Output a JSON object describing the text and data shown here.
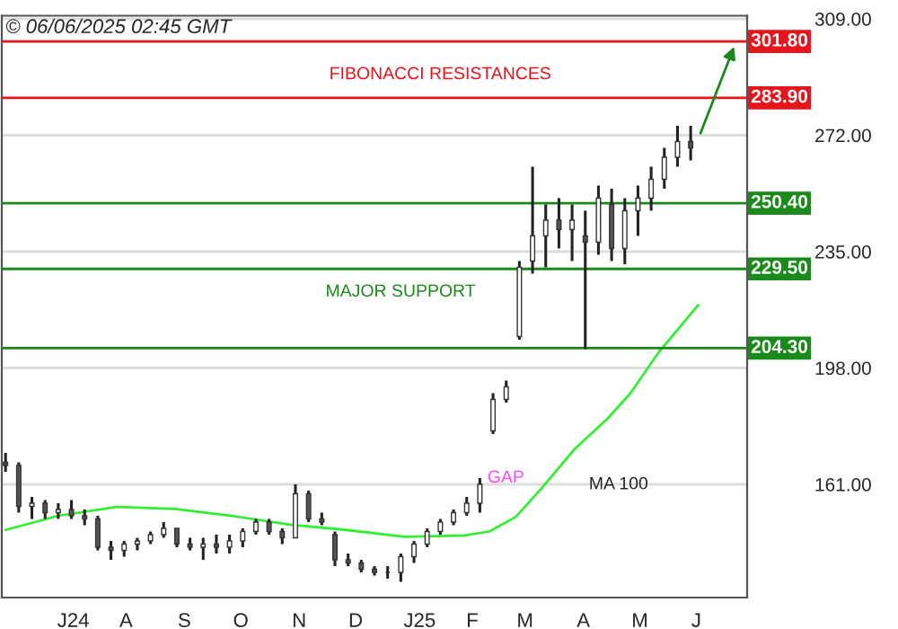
{
  "chart_data": {
    "type": "candlestick",
    "x": [
      "2024-06-03",
      "2024-06-10",
      "2024-06-17",
      "2024-06-24",
      "2024-07-01",
      "2024-07-08",
      "2024-07-15",
      "2024-07-22",
      "2024-07-29",
      "2024-08-05",
      "2024-08-12",
      "2024-08-19",
      "2024-08-26",
      "2024-09-02",
      "2024-09-09",
      "2024-09-16",
      "2024-09-23",
      "2024-09-30",
      "2024-10-07",
      "2024-10-14",
      "2024-10-21",
      "2024-10-28",
      "2024-11-04",
      "2024-11-11",
      "2024-11-18",
      "2024-11-25",
      "2024-12-02",
      "2024-12-09",
      "2024-12-16",
      "2024-12-23",
      "2024-12-30",
      "2025-01-06",
      "2025-01-13",
      "2025-01-20",
      "2025-01-27",
      "2025-02-03",
      "2025-02-10",
      "2025-02-17",
      "2025-02-24",
      "2025-03-03",
      "2025-03-10",
      "2025-03-17",
      "2025-03-24",
      "2025-03-31",
      "2025-04-07",
      "2025-04-14",
      "2025-04-21",
      "2025-04-28",
      "2025-05-05",
      "2025-05-12",
      "2025-05-19",
      "2025-05-26",
      "2025-06-02"
    ],
    "ohlc": [
      [
        168,
        171,
        165,
        167
      ],
      [
        167,
        168,
        152,
        154
      ],
      [
        154,
        157,
        150,
        155
      ],
      [
        155,
        156,
        150,
        152
      ],
      [
        152,
        155,
        150,
        153
      ],
      [
        153,
        156,
        150,
        151
      ],
      [
        151,
        153,
        148,
        150
      ],
      [
        150,
        151,
        140,
        141
      ],
      [
        141,
        143,
        137,
        140
      ],
      [
        140,
        143,
        138,
        142
      ],
      [
        142,
        144,
        140,
        143
      ],
      [
        143,
        146,
        142,
        145
      ],
      [
        145,
        149,
        144,
        147
      ],
      [
        147,
        147,
        141,
        142
      ],
      [
        142,
        144,
        140,
        141
      ],
      [
        141,
        144,
        137,
        142
      ],
      [
        142,
        145,
        139,
        141
      ],
      [
        141,
        145,
        139,
        143
      ],
      [
        143,
        147,
        141,
        146
      ],
      [
        146,
        150,
        145,
        149
      ],
      [
        149,
        150,
        145,
        146
      ],
      [
        146,
        147,
        142,
        144
      ],
      [
        144,
        161,
        144,
        158
      ],
      [
        158,
        159,
        149,
        150
      ],
      [
        150,
        152,
        148,
        149
      ],
      [
        145,
        146,
        135,
        137
      ],
      [
        137,
        139,
        135,
        136
      ],
      [
        136,
        137,
        133,
        134
      ],
      [
        134,
        135,
        132,
        133
      ],
      [
        133,
        135,
        131,
        133
      ],
      [
        133,
        139,
        130,
        138
      ],
      [
        138,
        143,
        136,
        142
      ],
      [
        142,
        147,
        141,
        146
      ],
      [
        146,
        150,
        145,
        149
      ],
      [
        149,
        153,
        148,
        152
      ],
      [
        152,
        157,
        151,
        155
      ],
      [
        155,
        163,
        152,
        161
      ],
      [
        178,
        190,
        177,
        188
      ],
      [
        188,
        194,
        187,
        192
      ],
      [
        208,
        232,
        207,
        230
      ],
      [
        232,
        262,
        228,
        240
      ],
      [
        240,
        250,
        230,
        245
      ],
      [
        245,
        252,
        236,
        242
      ],
      [
        242,
        250,
        232,
        245
      ],
      [
        240,
        248,
        204,
        238
      ],
      [
        238,
        256,
        234,
        252
      ],
      [
        250,
        255,
        232,
        236
      ],
      [
        236,
        252,
        231,
        248
      ],
      [
        248,
        256,
        240,
        252
      ],
      [
        252,
        262,
        248,
        258
      ],
      [
        258,
        268,
        255,
        265
      ],
      [
        265,
        275,
        262,
        270
      ],
      [
        270,
        275,
        264,
        268
      ]
    ],
    "series": [
      {
        "type": "line",
        "name": "MA 100",
        "color": "#33ee33",
        "x": [
          "2024-06-03",
          "2024-07-01",
          "2024-08-01",
          "2024-09-01",
          "2024-10-01",
          "2024-11-01",
          "2024-12-01",
          "2025-01-01",
          "2025-02-01",
          "2025-02-15",
          "2025-03-01",
          "2025-03-15",
          "2025-04-01",
          "2025-04-19",
          "2025-05-01",
          "2025-05-16",
          "2025-06-06"
        ],
        "values": [
          146.5,
          151,
          153.8,
          153.2,
          151,
          148.2,
          146.5,
          144.3,
          144.7,
          146,
          150.6,
          159.9,
          172,
          182,
          190,
          203,
          218
        ]
      }
    ],
    "xlim": [
      "2024-06-01",
      "2025-07-02"
    ],
    "xticks": [
      {
        "value": "2024-07-09",
        "label": "J24"
      },
      {
        "value": "2024-08-06",
        "label": "A"
      },
      {
        "value": "2024-09-06",
        "label": "S"
      },
      {
        "value": "2024-10-06",
        "label": "O"
      },
      {
        "value": "2024-11-06",
        "label": "N"
      },
      {
        "value": "2024-12-06",
        "label": "D"
      },
      {
        "value": "2025-01-09",
        "label": "J25"
      },
      {
        "value": "2025-02-06",
        "label": "F"
      },
      {
        "value": "2025-03-06",
        "label": "M"
      },
      {
        "value": "2025-04-06",
        "label": "A"
      },
      {
        "value": "2025-05-06",
        "label": "M"
      },
      {
        "value": "2025-06-05",
        "label": "J"
      }
    ],
    "ylim": [
      125,
      310
    ],
    "yticks": [
      {
        "value": 161,
        "label": "161.00"
      },
      {
        "value": 198,
        "label": "198.00"
      },
      {
        "value": 235,
        "label": "235.00"
      },
      {
        "value": 272,
        "label": "272.00"
      },
      {
        "value": 309,
        "label": "309.00"
      }
    ],
    "grid": "y",
    "legend": false,
    "ref_lines": [
      {
        "axis": "y",
        "value": 301.8,
        "label": "301.80",
        "color": "#e8141b"
      },
      {
        "axis": "y",
        "value": 283.9,
        "label": "283.90",
        "color": "#e8141b"
      },
      {
        "axis": "y",
        "value": 250.4,
        "label": "250.40",
        "color": "#1a8a1a"
      },
      {
        "axis": "y",
        "value": 229.5,
        "label": "229.50",
        "color": "#1a8a1a"
      },
      {
        "axis": "y",
        "value": 204.3,
        "label": "204.30",
        "color": "#1a8a1a"
      }
    ],
    "annotations": [
      "© 06/06/2025 02:45 GMT",
      {
        "text": "FIBONACCI RESISTANCES",
        "x": "2024-11-22",
        "y": 283.9
      },
      {
        "text": "MAJOR SUPPORT",
        "x": "2024-11-20",
        "y": 229.5
      },
      {
        "text": "GAP",
        "x": "2025-02-14",
        "y": 163
      }
    ]
  }
}
